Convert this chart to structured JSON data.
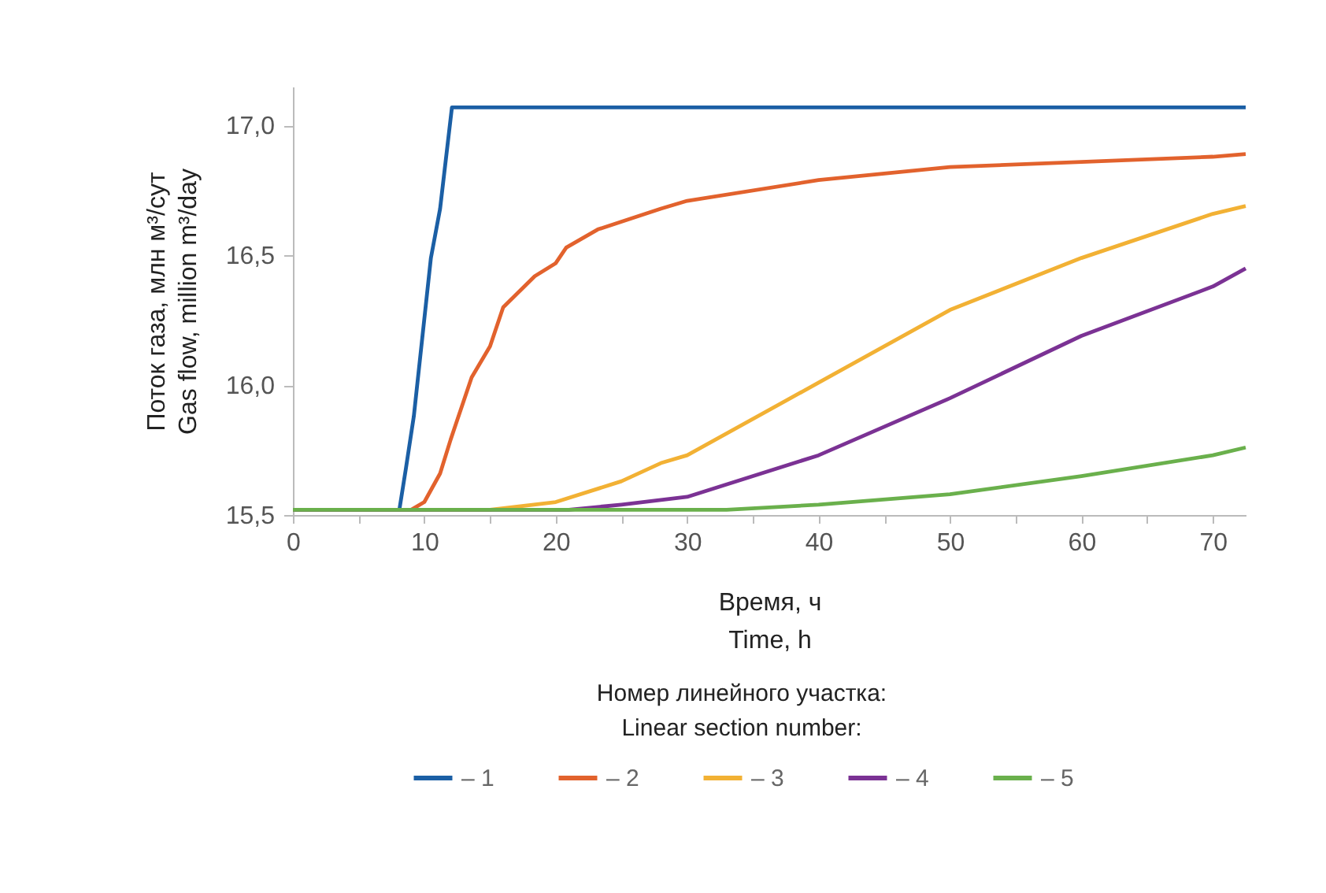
{
  "chart_data": {
    "type": "line",
    "xlabel": "Время, ч\nTime, h",
    "ylabel": "Поток газа, млн м³/сут\nGas flow, million m³/day",
    "legend_title": "Номер линейного участка:\nLinear section number:",
    "legend": "bottom",
    "grid": false,
    "line_style": "solid",
    "xlim": [
      0,
      72.5
    ],
    "ylim": [
      15.5,
      17.15
    ],
    "xticks": [
      0,
      {
        "value": 5,
        "label": null
      },
      10,
      {
        "value": 15,
        "label": null
      },
      20,
      {
        "value": 25,
        "label": null
      },
      30,
      {
        "value": 35,
        "label": null
      },
      40,
      {
        "value": 45,
        "label": null
      },
      50,
      {
        "value": 55,
        "label": null
      },
      60,
      {
        "value": 65,
        "label": null
      },
      70
    ],
    "yticks": [
      {
        "value": 15.5,
        "label": "15,5"
      },
      {
        "value": 16,
        "label": "16,0"
      },
      {
        "value": 16.5,
        "label": "16,5"
      },
      {
        "value": 17,
        "label": "17,0"
      }
    ],
    "series": [
      {
        "name": "– 1",
        "color": "#1b5fa5",
        "x": [
          0,
          8.1,
          8.6,
          9.2,
          10.5,
          11.2,
          12.1,
          72.5
        ],
        "values": [
          15.52,
          15.52,
          15.68,
          15.88,
          16.49,
          16.68,
          17.07,
          17.07
        ]
      },
      {
        "name": "– 2",
        "color": "#e2622d",
        "x": [
          0,
          9,
          10,
          11.2,
          12,
          12.4,
          13.6,
          15,
          16,
          18.4,
          20,
          20.8,
          23.2,
          25,
          28,
          30,
          40,
          50,
          60,
          70,
          72.5
        ],
        "values": [
          15.52,
          15.52,
          15.55,
          15.66,
          15.79,
          15.85,
          16.03,
          16.15,
          16.3,
          16.42,
          16.47,
          16.53,
          16.6,
          16.63,
          16.68,
          16.71,
          16.79,
          16.84,
          16.86,
          16.88,
          16.89
        ]
      },
      {
        "name": "– 3",
        "color": "#f2b134",
        "x": [
          0,
          15,
          20,
          25,
          28,
          30,
          40,
          50,
          60,
          70,
          72.5
        ],
        "values": [
          15.52,
          15.52,
          15.55,
          15.63,
          15.7,
          15.73,
          16.01,
          16.29,
          16.49,
          16.66,
          16.69
        ]
      },
      {
        "name": "– 4",
        "color": "#7b3294",
        "x": [
          0,
          21,
          25,
          30,
          40,
          50,
          60,
          70,
          72.5
        ],
        "values": [
          15.52,
          15.52,
          15.54,
          15.57,
          15.73,
          15.95,
          16.19,
          16.38,
          16.45
        ]
      },
      {
        "name": "– 5",
        "color": "#6ab04c",
        "x": [
          0,
          33,
          40,
          50,
          60,
          70,
          72.5
        ],
        "values": [
          15.52,
          15.52,
          15.54,
          15.58,
          15.65,
          15.73,
          15.76
        ]
      }
    ]
  }
}
